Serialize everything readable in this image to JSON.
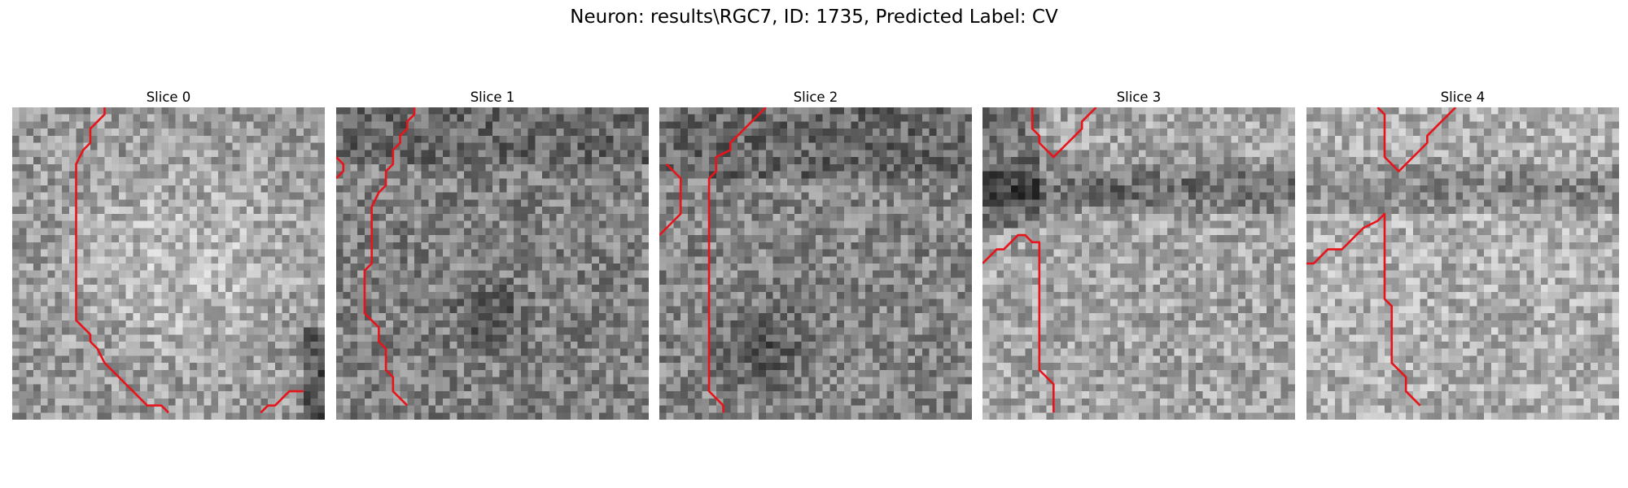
{
  "figure": {
    "title": "Neuron: results\\RGC7, ID: 1735, Predicted Label: CV",
    "colormap": "grayscale",
    "contour_color": "#e8141b"
  },
  "slices": [
    {
      "title": "Slice 0",
      "contours": [
        [
          [
            13,
            0
          ],
          [
            13,
            1
          ],
          [
            12,
            2
          ],
          [
            11,
            3
          ],
          [
            11,
            5
          ],
          [
            10,
            6
          ],
          [
            9,
            8
          ],
          [
            9,
            30
          ],
          [
            10,
            31
          ],
          [
            11,
            32
          ],
          [
            11,
            33
          ],
          [
            12,
            34
          ],
          [
            13,
            36
          ],
          [
            15,
            38
          ],
          [
            16,
            39
          ],
          [
            17,
            40
          ],
          [
            18,
            41
          ],
          [
            19,
            42
          ],
          [
            20,
            42
          ],
          [
            21,
            42
          ],
          [
            22,
            43
          ]
        ],
        [
          [
            35,
            43
          ],
          [
            36,
            42
          ],
          [
            37,
            42
          ],
          [
            38,
            41
          ],
          [
            39,
            40
          ],
          [
            40,
            40
          ],
          [
            41,
            40
          ]
        ]
      ]
    },
    {
      "title": "Slice 1",
      "contours": [
        [
          [
            11,
            0
          ],
          [
            11,
            1
          ],
          [
            10,
            2
          ],
          [
            10,
            3
          ],
          [
            9,
            4
          ],
          [
            9,
            5
          ],
          [
            8,
            6
          ],
          [
            8,
            8
          ],
          [
            7,
            9
          ],
          [
            7,
            11
          ],
          [
            6,
            12
          ],
          [
            5,
            14
          ],
          [
            5,
            22
          ],
          [
            4,
            23
          ],
          [
            4,
            29
          ],
          [
            5,
            30
          ],
          [
            6,
            31
          ],
          [
            6,
            33
          ],
          [
            7,
            34
          ],
          [
            7,
            37
          ],
          [
            8,
            38
          ],
          [
            8,
            40
          ],
          [
            9,
            41
          ],
          [
            10,
            42
          ]
        ],
        [
          [
            0,
            7
          ],
          [
            1,
            8
          ],
          [
            1,
            9
          ],
          [
            0,
            10
          ]
        ]
      ]
    },
    {
      "title": "Slice 2",
      "contours": [
        [
          [
            15,
            0
          ],
          [
            14,
            1
          ],
          [
            13,
            2
          ],
          [
            11,
            4
          ],
          [
            10,
            5
          ],
          [
            10,
            6
          ],
          [
            8,
            7
          ],
          [
            8,
            9
          ],
          [
            7,
            10
          ],
          [
            7,
            40
          ],
          [
            8,
            41
          ],
          [
            9,
            42
          ],
          [
            9,
            43
          ]
        ],
        [
          [
            1,
            8
          ],
          [
            2,
            9
          ],
          [
            3,
            10
          ],
          [
            3,
            15
          ],
          [
            2,
            16
          ],
          [
            1,
            17
          ],
          [
            0,
            18
          ]
        ]
      ]
    },
    {
      "title": "Slice 3",
      "contours": [
        [
          [
            7,
            0
          ],
          [
            7,
            3
          ],
          [
            8,
            4
          ],
          [
            8,
            5
          ],
          [
            9,
            6
          ],
          [
            10,
            7
          ],
          [
            12,
            5
          ],
          [
            13,
            4
          ],
          [
            14,
            3
          ],
          [
            14,
            2
          ],
          [
            16,
            0
          ]
        ],
        [
          [
            0,
            22
          ],
          [
            1,
            21
          ],
          [
            2,
            20
          ],
          [
            3,
            20
          ],
          [
            4,
            19
          ],
          [
            5,
            18
          ],
          [
            6,
            18
          ],
          [
            7,
            19
          ],
          [
            8,
            19
          ],
          [
            8,
            37
          ],
          [
            9,
            38
          ],
          [
            10,
            39
          ],
          [
            10,
            43
          ]
        ]
      ]
    },
    {
      "title": "Slice 4",
      "contours": [
        [
          [
            10,
            0
          ],
          [
            11,
            1
          ],
          [
            11,
            7
          ],
          [
            12,
            8
          ],
          [
            13,
            9
          ],
          [
            14,
            8
          ],
          [
            15,
            7
          ],
          [
            16,
            6
          ],
          [
            17,
            5
          ],
          [
            17,
            4
          ],
          [
            18,
            3
          ],
          [
            19,
            2
          ],
          [
            21,
            0
          ]
        ],
        [
          [
            0,
            22
          ],
          [
            1,
            22
          ],
          [
            2,
            21
          ],
          [
            3,
            20
          ],
          [
            4,
            20
          ],
          [
            5,
            20
          ],
          [
            6,
            19
          ],
          [
            7,
            18
          ],
          [
            8,
            17
          ],
          [
            10,
            16
          ],
          [
            11,
            15
          ],
          [
            11,
            27
          ],
          [
            12,
            28
          ],
          [
            12,
            36
          ],
          [
            13,
            37
          ],
          [
            14,
            38
          ],
          [
            14,
            40
          ],
          [
            15,
            41
          ],
          [
            16,
            42
          ]
        ]
      ]
    }
  ]
}
